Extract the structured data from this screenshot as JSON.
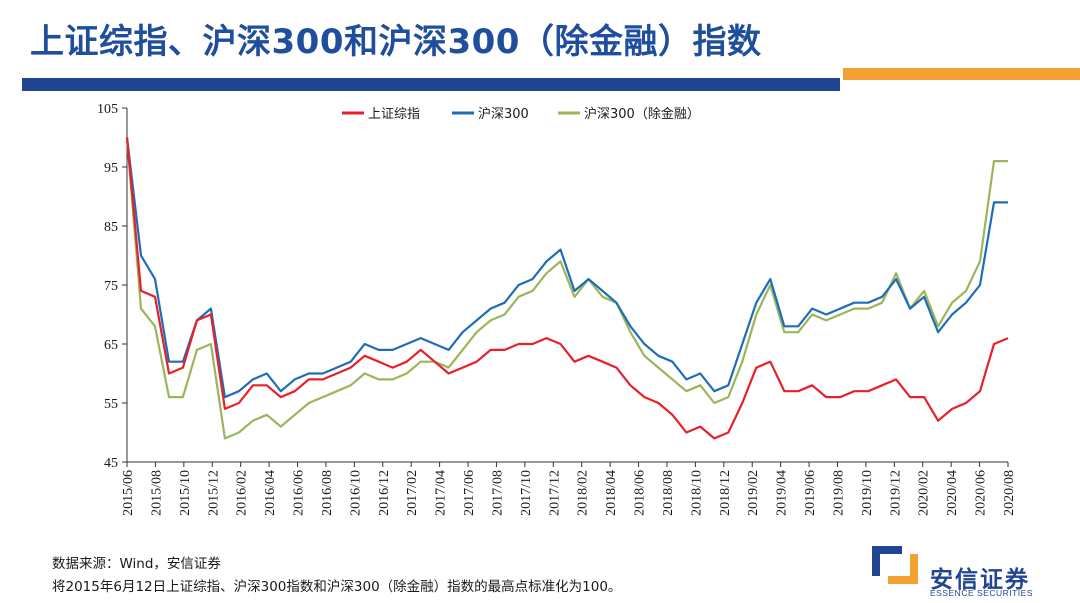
{
  "slide": {
    "title": "上证综指、沪深300和沪深300（除金融）指数"
  },
  "footnotes": {
    "source": "数据来源：Wind，安信证券",
    "note": "将2015年6月12日上证综指、沪深300指数和沪深300（除金融）指数的最高点标准化为100。"
  },
  "logo": {
    "cn": "安信证券",
    "en": "ESSENCE SECURITIES",
    "icon": "essence-securities-logo-icon"
  },
  "colors": {
    "title": "#1f4e9c",
    "bar_blue": "#1f4593",
    "bar_orange": "#f4a134"
  },
  "chart_data": {
    "type": "line",
    "title": "",
    "xlabel": "",
    "ylabel": "",
    "ylim": [
      45,
      105
    ],
    "yticks": [
      45,
      55,
      65,
      75,
      85,
      95,
      105
    ],
    "xticks": [
      "2015/06",
      "2015/08",
      "2015/10",
      "2015/12",
      "2016/02",
      "2016/04",
      "2016/06",
      "2016/08",
      "2016/10",
      "2016/12",
      "2017/02",
      "2017/04",
      "2017/06",
      "2017/08",
      "2017/10",
      "2017/12",
      "2018/02",
      "2018/04",
      "2018/06",
      "2018/08",
      "2018/10",
      "2018/12",
      "2019/02",
      "2019/04",
      "2019/06",
      "2019/08",
      "2019/10",
      "2019/12",
      "2020/02",
      "2020/04",
      "2020/06",
      "2020/08"
    ],
    "legend_position": "top-center",
    "grid": false,
    "x": [
      "2015/06",
      "2015/07",
      "2015/08",
      "2015/09",
      "2015/10",
      "2015/11",
      "2015/12",
      "2016/01",
      "2016/02",
      "2016/03",
      "2016/04",
      "2016/05",
      "2016/06",
      "2016/07",
      "2016/08",
      "2016/09",
      "2016/10",
      "2016/11",
      "2016/12",
      "2017/01",
      "2017/02",
      "2017/03",
      "2017/04",
      "2017/05",
      "2017/06",
      "2017/07",
      "2017/08",
      "2017/09",
      "2017/10",
      "2017/11",
      "2017/12",
      "2018/01",
      "2018/02",
      "2018/03",
      "2018/04",
      "2018/05",
      "2018/06",
      "2018/07",
      "2018/08",
      "2018/09",
      "2018/10",
      "2018/11",
      "2018/12",
      "2019/01",
      "2019/02",
      "2019/03",
      "2019/04",
      "2019/05",
      "2019/06",
      "2019/07",
      "2019/08",
      "2019/09",
      "2019/10",
      "2019/11",
      "2019/12",
      "2020/01",
      "2020/02",
      "2020/03",
      "2020/04",
      "2020/05",
      "2020/06",
      "2020/07",
      "2020/08",
      "2020/09"
    ],
    "series": [
      {
        "name": "上证综指",
        "color": "#e8202a",
        "values": [
          100,
          74,
          73,
          60,
          61,
          69,
          70,
          54,
          55,
          58,
          58,
          56,
          57,
          59,
          59,
          60,
          61,
          63,
          62,
          61,
          62,
          64,
          62,
          60,
          61,
          62,
          64,
          64,
          65,
          65,
          66,
          65,
          62,
          63,
          62,
          61,
          58,
          56,
          55,
          53,
          50,
          51,
          49,
          50,
          55,
          61,
          62,
          57,
          57,
          58,
          56,
          56,
          57,
          57,
          58,
          59,
          56,
          56,
          52,
          54,
          55,
          57,
          65,
          66
        ]
      },
      {
        "name": "沪深300",
        "color": "#1f6db6",
        "values": [
          100,
          80,
          76,
          62,
          62,
          69,
          71,
          56,
          57,
          59,
          60,
          57,
          59,
          60,
          60,
          61,
          62,
          65,
          64,
          64,
          65,
          66,
          65,
          64,
          67,
          69,
          71,
          72,
          75,
          76,
          79,
          81,
          74,
          76,
          74,
          72,
          68,
          65,
          63,
          62,
          59,
          60,
          57,
          58,
          65,
          72,
          76,
          68,
          68,
          71,
          70,
          71,
          72,
          72,
          73,
          76,
          71,
          73,
          67,
          70,
          72,
          75,
          89,
          89
        ]
      },
      {
        "name": "沪深300（除金融）",
        "color": "#9bb65a",
        "values": [
          100,
          71,
          68,
          56,
          56,
          64,
          65,
          49,
          50,
          52,
          53,
          51,
          53,
          55,
          56,
          57,
          58,
          60,
          59,
          59,
          60,
          62,
          62,
          61,
          64,
          67,
          69,
          70,
          73,
          74,
          77,
          79,
          73,
          76,
          73,
          72,
          67,
          63,
          61,
          59,
          57,
          58,
          55,
          56,
          62,
          70,
          75,
          67,
          67,
          70,
          69,
          70,
          71,
          71,
          72,
          77,
          71,
          74,
          68,
          72,
          74,
          79,
          96,
          96
        ]
      }
    ]
  }
}
